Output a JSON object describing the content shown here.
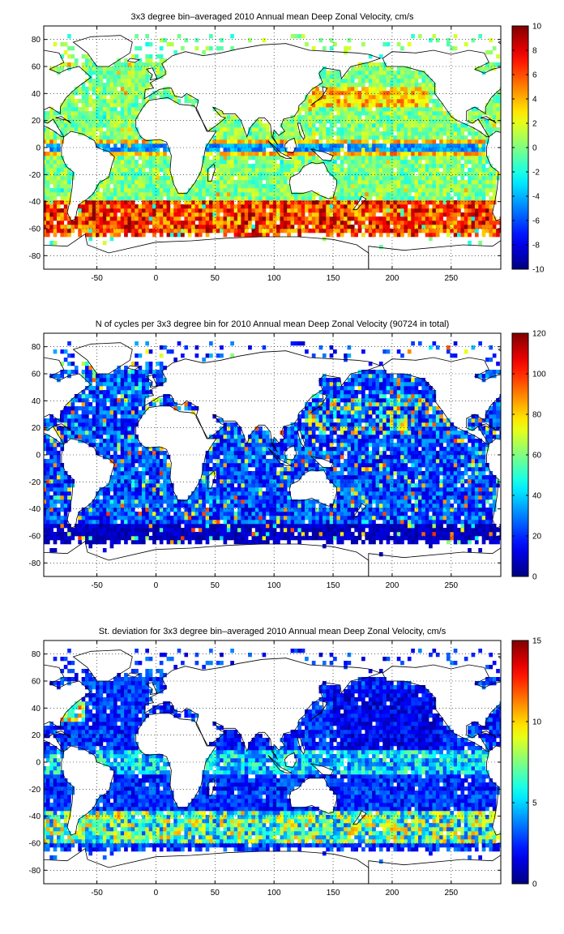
{
  "chart_data": [
    {
      "type": "heatmap",
      "title": "3x3 degree bin–averaged 2010 Annual mean Deep Zonal Velocity, cm/s",
      "xlabel": "",
      "ylabel": "",
      "xlim": [
        -95,
        292
      ],
      "ylim": [
        -90,
        90
      ],
      "xticks": [
        -50,
        0,
        50,
        100,
        150,
        200,
        250
      ],
      "yticks": [
        80,
        60,
        40,
        20,
        0,
        -20,
        -40,
        -60,
        -80
      ],
      "colorbar": {
        "range": [
          -10,
          10
        ],
        "ticks": [
          10,
          8,
          6,
          4,
          2,
          0,
          -2,
          -4,
          -6,
          -8,
          -10
        ]
      },
      "colormap": "jet",
      "grid": true,
      "field": "zonal"
    },
    {
      "type": "heatmap",
      "title": "N of cycles per 3x3 degree bin for 2010 Annual mean Deep Zonal Velocity (90724 in total)",
      "xlabel": "",
      "ylabel": "",
      "xlim": [
        -95,
        292
      ],
      "ylim": [
        -90,
        90
      ],
      "xticks": [
        -50,
        0,
        50,
        100,
        150,
        200,
        250
      ],
      "yticks": [
        80,
        60,
        40,
        20,
        0,
        -20,
        -40,
        -60,
        -80
      ],
      "colorbar": {
        "range": [
          0,
          120
        ],
        "ticks": [
          120,
          100,
          80,
          60,
          40,
          20,
          0
        ]
      },
      "colormap": "jet",
      "grid": true,
      "field": "count"
    },
    {
      "type": "heatmap",
      "title": "St. deviation for 3x3 degree bin–averaged 2010 Annual mean Deep Zonal Velocity, cm/s",
      "xlabel": "",
      "ylabel": "",
      "xlim": [
        -95,
        292
      ],
      "ylim": [
        -90,
        90
      ],
      "xticks": [
        -50,
        0,
        50,
        100,
        150,
        200,
        250
      ],
      "yticks": [
        80,
        60,
        40,
        20,
        0,
        -20,
        -40,
        -60,
        -80
      ],
      "colorbar": {
        "range": [
          0,
          15
        ],
        "ticks": [
          15,
          10,
          5,
          0
        ]
      },
      "colormap": "jet",
      "grid": true,
      "field": "stdev"
    }
  ]
}
